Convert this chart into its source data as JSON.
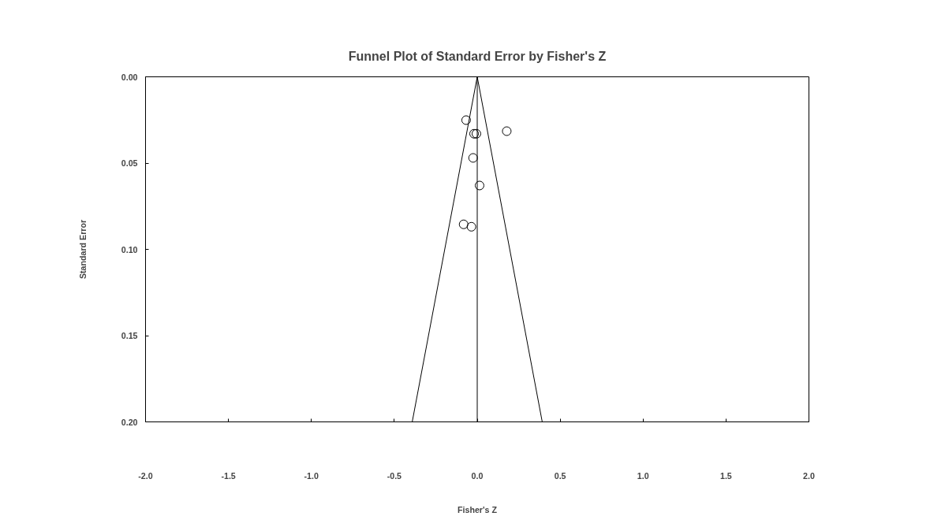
{
  "chart_data": {
    "type": "scatter",
    "title": "Funnel Plot of Standard Error by Fisher's Z",
    "xlabel": "Fisher's Z",
    "ylabel": "Standard Error",
    "xlim": [
      -2.0,
      2.0
    ],
    "ylim": [
      0.2,
      0.0
    ],
    "xticks": [
      {
        "value": -2.0,
        "label": "-2.0"
      },
      {
        "value": -1.5,
        "label": "-1.5"
      },
      {
        "value": -1.0,
        "label": "-1.0"
      },
      {
        "value": -0.5,
        "label": "-0.5"
      },
      {
        "value": 0.0,
        "label": "0.0"
      },
      {
        "value": 0.5,
        "label": "0.5"
      },
      {
        "value": 1.0,
        "label": "1.0"
      },
      {
        "value": 1.5,
        "label": "1.5"
      },
      {
        "value": 2.0,
        "label": "2.0"
      }
    ],
    "yticks": [
      {
        "value": 0.0,
        "label": "0.00"
      },
      {
        "value": 0.05,
        "label": "0.05"
      },
      {
        "value": 0.1,
        "label": "0.10"
      },
      {
        "value": 0.15,
        "label": "0.15"
      },
      {
        "value": 0.2,
        "label": "0.20"
      }
    ],
    "grid": false,
    "ref_lines": [
      {
        "axis": "x",
        "value": 0.0,
        "color": "#000000"
      }
    ],
    "series": [
      {
        "marker": "circle",
        "color": "#000000",
        "x": [
          -0.067,
          -0.019,
          -0.005,
          0.178,
          -0.025,
          0.014,
          -0.082,
          -0.035
        ],
        "values": [
          0.0251,
          0.033,
          0.033,
          0.0315,
          0.047,
          0.063,
          0.0855,
          0.0869
        ]
      },
      {
        "type": "line",
        "marker": "none",
        "color": "#000000",
        "x": [
          -0.392,
          0.0,
          0.392
        ],
        "values": [
          0.2,
          0.0,
          0.2
        ]
      }
    ]
  }
}
